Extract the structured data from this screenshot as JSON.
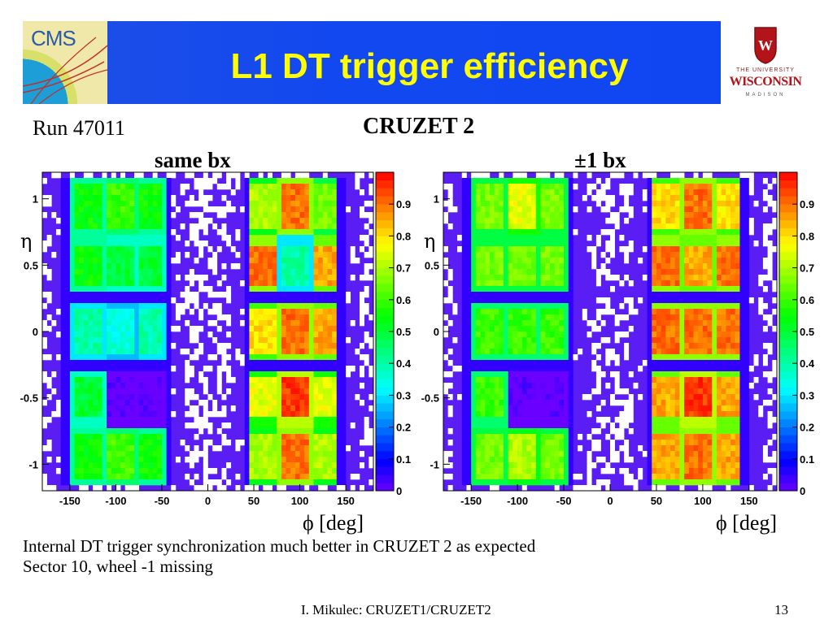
{
  "header": {
    "title": "L1 DT trigger efficiency",
    "cms_logo_text": "CMS",
    "uw_the": "THE UNIVERSITY",
    "uw_name": "WISCONSIN",
    "uw_madison": "MADISON"
  },
  "run_label": "Run 47011",
  "main_title": "CRUZET 2",
  "notes": [
    "Internal DT trigger synchronization much better in CRUZET 2 as expected",
    "Sector 10, wheel -1 missing"
  ],
  "footer": {
    "center": "I. Mikulec: CRUZET1/CRUZET2",
    "page": "13"
  },
  "colors": {
    "header_bg": "#1248ef",
    "title": "#ffff00",
    "plot_bg": "#5a1ef5"
  },
  "chart_data": [
    {
      "type": "heatmap",
      "title": "same bx",
      "xlabel": "ϕ [deg]",
      "ylabel": "η",
      "xlim": [
        -180,
        180
      ],
      "ylim": [
        -1.2,
        1.2
      ],
      "xticks": [
        -150,
        -100,
        -50,
        0,
        50,
        100,
        150
      ],
      "yticks": [
        -1,
        -0.5,
        0,
        0.5,
        1
      ],
      "zlim": [
        0,
        1
      ],
      "colorbar_ticks": [
        0,
        0.1,
        0.2,
        0.3,
        0.4,
        0.5,
        0.6,
        0.7,
        0.8,
        0.9
      ],
      "colorbar_labels": [
        "0",
        "0.1",
        "0.2",
        "0.3",
        "0.4",
        "0.5",
        "0.6",
        "0.7",
        "0.8",
        "0.9"
      ],
      "sectors_phi": [
        -130,
        -95,
        -65,
        60,
        95,
        125
      ],
      "wheels_eta": [
        0.95,
        0.5,
        0.0,
        -0.5,
        -0.95
      ],
      "efficiency": [
        [
          0.55,
          0.6,
          0.55,
          0.7,
          0.9,
          0.65
        ],
        [
          0.55,
          0.5,
          0.5,
          0.9,
          0.4,
          0.85
        ],
        [
          0.4,
          0.35,
          0.4,
          0.8,
          0.9,
          0.85
        ],
        [
          0.5,
          0.0,
          0.0,
          0.75,
          0.95,
          0.75
        ],
        [
          0.55,
          0.6,
          0.55,
          0.7,
          0.9,
          0.7
        ]
      ]
    },
    {
      "type": "heatmap",
      "title": "±1 bx",
      "xlabel": "ϕ [deg]",
      "ylabel": "η",
      "xlim": [
        -180,
        180
      ],
      "ylim": [
        -1.2,
        1.2
      ],
      "xticks": [
        -150,
        -100,
        -50,
        0,
        50,
        100,
        150
      ],
      "yticks": [
        -1,
        -0.5,
        0,
        0.5,
        1
      ],
      "zlim": [
        0,
        1
      ],
      "colorbar_ticks": [
        0,
        0.1,
        0.2,
        0.3,
        0.4,
        0.5,
        0.6,
        0.7,
        0.8,
        0.9
      ],
      "colorbar_labels": [
        "0",
        "0.1",
        "0.2",
        "0.3",
        "0.4",
        "0.5",
        "0.6",
        "0.7",
        "0.8",
        "0.9"
      ],
      "sectors_phi": [
        -130,
        -95,
        -65,
        60,
        95,
        125
      ],
      "wheels_eta": [
        0.95,
        0.5,
        0.0,
        -0.5,
        -0.95
      ],
      "efficiency": [
        [
          0.65,
          0.75,
          0.65,
          0.8,
          0.9,
          0.8
        ],
        [
          0.65,
          0.65,
          0.65,
          0.9,
          0.85,
          0.9
        ],
        [
          0.6,
          0.6,
          0.6,
          0.9,
          0.9,
          0.9
        ],
        [
          0.6,
          0.0,
          0.0,
          0.85,
          0.95,
          0.85
        ],
        [
          0.65,
          0.7,
          0.65,
          0.85,
          0.9,
          0.85
        ]
      ]
    }
  ]
}
